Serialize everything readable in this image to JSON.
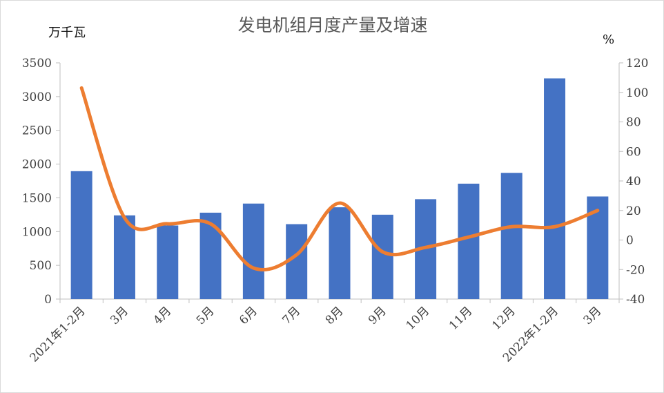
{
  "chart_data": {
    "type": "bar",
    "title": "发电机组月度产量及增速",
    "left_unit": "万千瓦",
    "right_unit": "%",
    "categories": [
      "2021年1-2月",
      "3月",
      "4月",
      "5月",
      "6月",
      "7月",
      "8月",
      "9月",
      "10月",
      "11月",
      "12月",
      "2022年1-2月",
      "3月"
    ],
    "series": [
      {
        "type": "bar",
        "axis": "left",
        "color": "#4472c4",
        "values": [
          1895,
          1240,
          1090,
          1280,
          1415,
          1110,
          1360,
          1250,
          1480,
          1710,
          1870,
          3270,
          1520
        ]
      },
      {
        "type": "line",
        "axis": "right",
        "color": "#ed7d31",
        "values": [
          103,
          15,
          11,
          11,
          -19,
          -10,
          25,
          -8,
          -5,
          2,
          9,
          9,
          20
        ]
      }
    ],
    "y_left": {
      "min": 0,
      "max": 3500,
      "step": 500,
      "ticks": [
        "0",
        "500",
        "1000",
        "1500",
        "2000",
        "2500",
        "3000",
        "3500"
      ]
    },
    "y_right": {
      "min": -40,
      "max": 120,
      "step": 20,
      "ticks": [
        "-40",
        "-20",
        "0",
        "20",
        "40",
        "60",
        "80",
        "100",
        "120"
      ]
    },
    "grid": false,
    "legend": "none"
  }
}
